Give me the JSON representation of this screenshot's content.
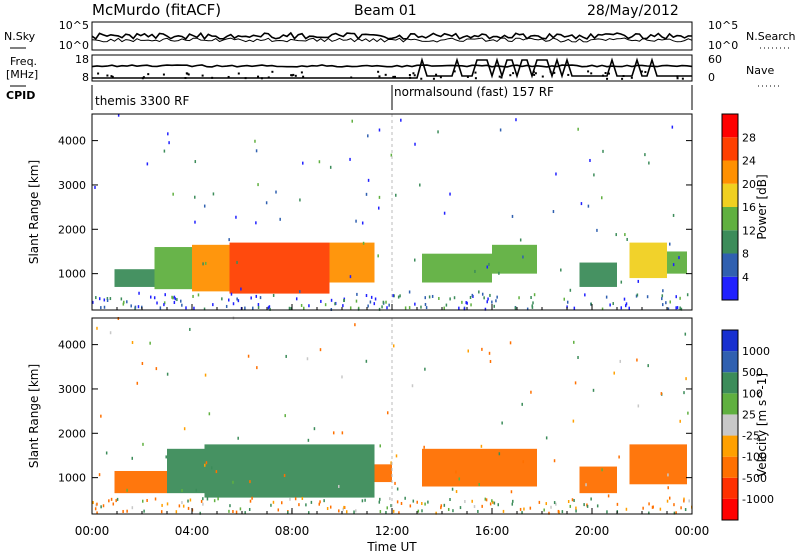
{
  "header": {
    "station": "McMurdo (fitACF)",
    "beam": "Beam 01",
    "date": "28/May/2012"
  },
  "noise_panel": {
    "left_label": "N.Sky",
    "right_label": "N.Search",
    "left_ticks": [
      "10^5",
      "10^0"
    ],
    "right_ticks": [
      "10^5",
      "10^0"
    ]
  },
  "freq_panel": {
    "left_label_line1": "Freq.",
    "left_label_line2": "[MHz]",
    "right_label": "Nave",
    "left_ticks": [
      "18",
      "8"
    ],
    "right_ticks": [
      "60",
      "0"
    ]
  },
  "cpid_panel": {
    "label": "CPID",
    "modes": [
      {
        "name": "themis 3300 RF",
        "start_hour": 0
      },
      {
        "name": "normalsound (fast) 157 RF",
        "start_hour": 12
      }
    ]
  },
  "x_axis": {
    "label": "Time UT",
    "ticks": [
      "00:00",
      "04:00",
      "08:00",
      "12:00",
      "16:00",
      "20:00",
      "00:00"
    ]
  },
  "colors": {
    "power_scale": [
      "#2020ff",
      "#3060b0",
      "#3c8c5a",
      "#60b040",
      "#f0d020",
      "#ff9000",
      "#ff4000",
      "#ff0000"
    ],
    "velocity_scale": [
      "#ff0000",
      "#ff3000",
      "#ff7000",
      "#ffa000",
      "#c8c8c8",
      "#60b040",
      "#3c8c5a",
      "#3060b0",
      "#1830d0"
    ]
  },
  "chart_data": [
    {
      "type": "heatmap",
      "title": "",
      "xlabel": "Time UT",
      "ylabel": "Slant Range [km]",
      "xlim_hours": [
        0,
        24
      ],
      "ylim": [
        180,
        4600
      ],
      "yticks": [
        1000,
        2000,
        3000,
        4000
      ],
      "colorbar": {
        "label": "Power [dB]",
        "tick_labels": [
          "4",
          "8",
          "12",
          "16",
          "20",
          "24",
          "28"
        ],
        "range": [
          0,
          32
        ]
      },
      "regions": [
        {
          "t0": 0.9,
          "t1": 2.5,
          "r0": 700,
          "r1": 1100,
          "value": 9
        },
        {
          "t0": 2.5,
          "t1": 4.0,
          "r0": 650,
          "r1": 1600,
          "value": 12
        },
        {
          "t0": 4.0,
          "t1": 5.5,
          "r0": 600,
          "r1": 1650,
          "value": 20
        },
        {
          "t0": 5.5,
          "t1": 9.5,
          "r0": 550,
          "r1": 1700,
          "value": 26
        },
        {
          "t0": 9.5,
          "t1": 11.3,
          "r0": 800,
          "r1": 1700,
          "value": 22
        },
        {
          "t0": 13.2,
          "t1": 16.0,
          "r0": 800,
          "r1": 1450,
          "value": 14
        },
        {
          "t0": 16.0,
          "t1": 17.8,
          "r0": 1000,
          "r1": 1650,
          "value": 15
        },
        {
          "t0": 19.5,
          "t1": 21.0,
          "r0": 700,
          "r1": 1250,
          "value": 9
        },
        {
          "t0": 21.5,
          "t1": 23.0,
          "r0": 900,
          "r1": 1700,
          "value": 18
        },
        {
          "t0": 23.0,
          "t1": 23.8,
          "r0": 1000,
          "r1": 1500,
          "value": 13
        }
      ]
    },
    {
      "type": "heatmap",
      "title": "",
      "xlabel": "Time UT",
      "ylabel": "Slant Range [km]",
      "xlim_hours": [
        0,
        24
      ],
      "ylim": [
        180,
        4600
      ],
      "yticks": [
        1000,
        2000,
        3000,
        4000
      ],
      "colorbar": {
        "label": "Velocity [m s^-1]",
        "tick_labels": [
          "1000",
          "500",
          "100",
          "25",
          "-25",
          "-100",
          "-500",
          "-1000"
        ]
      },
      "regions": [
        {
          "t0": 0.9,
          "t1": 3.0,
          "r0": 650,
          "r1": 1150,
          "value": -150
        },
        {
          "t0": 3.0,
          "t1": 4.5,
          "r0": 650,
          "r1": 1650,
          "value": 250
        },
        {
          "t0": 4.5,
          "t1": 11.3,
          "r0": 550,
          "r1": 1750,
          "value": 300
        },
        {
          "t0": 11.3,
          "t1": 12.0,
          "r0": 900,
          "r1": 1300,
          "value": -200
        },
        {
          "t0": 13.2,
          "t1": 17.8,
          "r0": 800,
          "r1": 1650,
          "value": -250
        },
        {
          "t0": 19.5,
          "t1": 21.0,
          "r0": 650,
          "r1": 1250,
          "value": -250
        },
        {
          "t0": 21.5,
          "t1": 23.8,
          "r0": 850,
          "r1": 1750,
          "value": -250
        }
      ]
    }
  ]
}
